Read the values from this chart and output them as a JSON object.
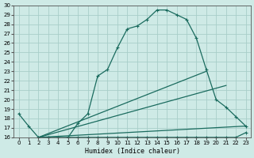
{
  "title": "",
  "xlabel": "Humidex (Indice chaleur)",
  "bg_color": "#ceeae6",
  "grid_color": "#a8cec9",
  "line_color": "#1a6b5e",
  "xlim": [
    -0.5,
    23.5
  ],
  "ylim": [
    16,
    30
  ],
  "xticks": [
    0,
    1,
    2,
    3,
    4,
    5,
    6,
    7,
    8,
    9,
    10,
    11,
    12,
    13,
    14,
    15,
    16,
    17,
    18,
    19,
    20,
    21,
    22,
    23
  ],
  "yticks": [
    16,
    17,
    18,
    19,
    20,
    21,
    22,
    23,
    24,
    25,
    26,
    27,
    28,
    29,
    30
  ],
  "curve1_x": [
    0,
    1,
    2,
    3,
    4,
    5,
    6,
    7,
    8,
    9,
    10,
    11,
    12,
    13,
    14,
    15,
    16,
    17,
    18,
    19,
    20,
    21,
    22,
    23
  ],
  "curve1_y": [
    18.5,
    17.2,
    16.0,
    15.8,
    15.8,
    16.0,
    17.5,
    18.5,
    22.5,
    23.2,
    25.5,
    27.5,
    27.8,
    28.5,
    29.5,
    29.5,
    29.0,
    28.5,
    26.5,
    23.2,
    20.0,
    19.2,
    18.2,
    17.2
  ],
  "curve2_x": [
    2,
    3,
    4,
    5,
    6,
    7,
    8,
    9,
    10,
    11,
    12,
    13,
    14,
    15,
    16,
    17,
    18,
    19,
    20,
    21,
    22,
    23
  ],
  "curve2_y": [
    16.0,
    16.0,
    16.0,
    16.0,
    16.0,
    16.0,
    16.0,
    16.0,
    16.0,
    16.0,
    16.0,
    16.0,
    16.0,
    16.0,
    16.0,
    16.0,
    16.0,
    16.0,
    16.0,
    16.0,
    16.0,
    16.5
  ],
  "line1_x": [
    2,
    19
  ],
  "line1_y": [
    16.0,
    23.0
  ],
  "line2_x": [
    2,
    21
  ],
  "line2_y": [
    16.0,
    21.5
  ],
  "line3_x": [
    2,
    23
  ],
  "line3_y": [
    16.0,
    17.2
  ]
}
